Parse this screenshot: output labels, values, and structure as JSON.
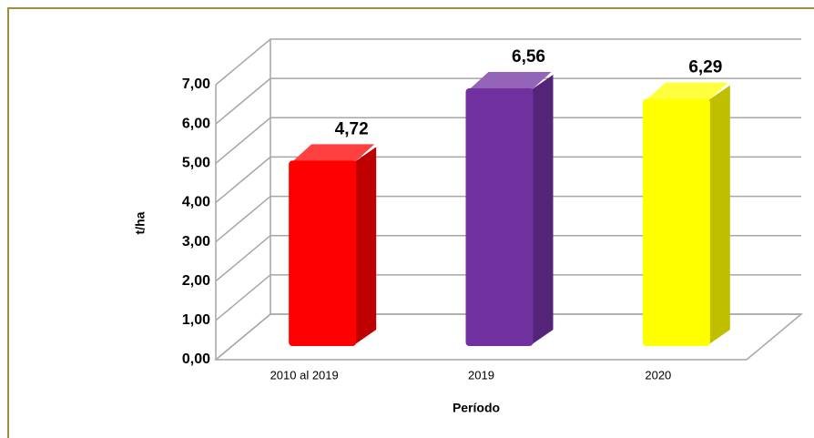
{
  "chart_data": {
    "type": "bar3d",
    "categories": [
      "2010 al 2019",
      "2019",
      "2020"
    ],
    "values": [
      4.72,
      6.56,
      6.29
    ],
    "value_labels": [
      "4,72",
      "6,56",
      "6,29"
    ],
    "colors": [
      "#ff0000",
      "#7030a0",
      "#ffff00"
    ],
    "ylabel": "t/ha",
    "xlabel": "Período",
    "ylim": [
      0,
      7
    ],
    "yticks": [
      {
        "value": 0,
        "label": "0,00"
      },
      {
        "value": 1,
        "label": "1,00"
      },
      {
        "value": 2,
        "label": "2,00"
      },
      {
        "value": 3,
        "label": "3,00"
      },
      {
        "value": 4,
        "label": "4,00"
      },
      {
        "value": 5,
        "label": "5,00"
      },
      {
        "value": 6,
        "label": "6,00"
      },
      {
        "value": 7,
        "label": "7,00"
      }
    ],
    "grid": true
  }
}
